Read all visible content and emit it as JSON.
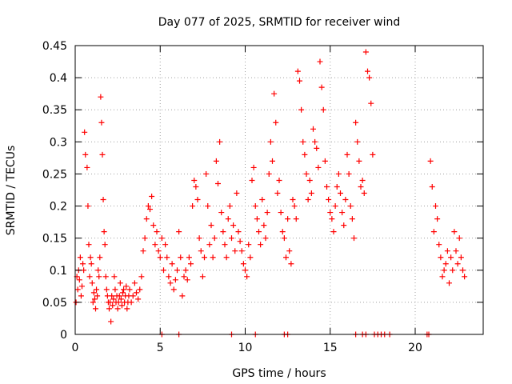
{
  "chart_data": {
    "type": "scatter",
    "title": "Day 077 of 2025, SRMTID for receiver wind",
    "xlabel": "GPS time / hours",
    "ylabel": "SRMTID / TECUs",
    "xlim": [
      0,
      24
    ],
    "ylim": [
      0,
      0.45
    ],
    "x_ticks": [
      "0",
      "5",
      "10",
      "15",
      "20"
    ],
    "y_ticks": [
      "0",
      "0.05",
      "0.1",
      "0.15",
      "0.2",
      "0.25",
      "0.3",
      "0.35",
      "0.4",
      "0.45"
    ],
    "grid": true,
    "marker": "+",
    "colors": {
      "points": "#ff0000",
      "grid": "#a0a0a0",
      "axis": "#000000"
    },
    "series": [
      {
        "name": "SRMTID",
        "x": [
          0.05,
          0.1,
          0.15,
          0.2,
          0.25,
          0.3,
          0.35,
          0.4,
          0.45,
          0.5,
          0.55,
          0.6,
          0.7,
          0.75,
          0.8,
          0.85,
          0.9,
          0.95,
          1.0,
          1.05,
          1.1,
          1.15,
          1.2,
          1.25,
          1.3,
          1.35,
          1.4,
          1.45,
          1.5,
          1.55,
          1.6,
          1.65,
          1.7,
          1.75,
          1.8,
          1.85,
          1.9,
          1.95,
          2.0,
          2.05,
          2.1,
          2.15,
          2.2,
          2.25,
          2.3,
          2.35,
          2.4,
          2.45,
          2.5,
          2.55,
          2.6,
          2.65,
          2.7,
          2.75,
          2.8,
          2.85,
          2.9,
          2.95,
          3.0,
          3.05,
          3.1,
          3.15,
          3.2,
          3.3,
          3.4,
          3.5,
          3.6,
          3.7,
          3.8,
          3.9,
          4.0,
          4.1,
          4.2,
          4.3,
          4.4,
          4.5,
          4.6,
          4.7,
          4.8,
          4.9,
          5.0,
          5.1,
          5.2,
          5.3,
          5.4,
          5.5,
          5.6,
          5.7,
          5.8,
          5.9,
          6.0,
          6.1,
          6.2,
          6.3,
          6.4,
          6.5,
          6.6,
          6.7,
          6.8,
          6.9,
          7.0,
          7.1,
          7.2,
          7.3,
          7.4,
          7.5,
          7.6,
          7.7,
          7.8,
          7.9,
          8.0,
          8.1,
          8.2,
          8.3,
          8.4,
          8.5,
          8.6,
          8.7,
          8.8,
          8.9,
          9.0,
          9.1,
          9.2,
          9.3,
          9.4,
          9.5,
          9.6,
          9.7,
          9.8,
          9.9,
          10.0,
          10.1,
          10.2,
          10.3,
          10.4,
          10.5,
          10.6,
          10.7,
          10.8,
          10.9,
          11.0,
          11.1,
          11.2,
          11.3,
          11.4,
          11.5,
          11.6,
          11.7,
          11.8,
          11.9,
          12.0,
          12.1,
          12.2,
          12.3,
          12.4,
          12.5,
          12.6,
          12.7,
          12.8,
          12.9,
          13.0,
          13.1,
          13.2,
          13.3,
          13.4,
          13.5,
          13.6,
          13.7,
          13.8,
          13.9,
          14.0,
          14.1,
          14.2,
          14.3,
          14.4,
          14.5,
          14.6,
          14.7,
          14.8,
          14.9,
          15.0,
          15.1,
          15.2,
          15.3,
          15.4,
          15.5,
          15.6,
          15.7,
          15.8,
          15.9,
          16.0,
          16.1,
          16.2,
          16.3,
          16.4,
          16.5,
          16.6,
          16.7,
          16.8,
          16.9,
          17.0,
          17.1,
          17.2,
          17.3,
          17.4,
          17.5,
          20.9,
          21.0,
          21.1,
          21.2,
          21.3,
          21.4,
          21.5,
          21.6,
          21.7,
          21.8,
          21.9,
          22.0,
          22.1,
          22.2,
          22.3,
          22.4,
          22.5,
          22.6,
          22.7,
          22.8,
          22.9,
          5.1,
          6.1,
          9.2,
          10.6,
          12.3,
          12.5,
          16.5,
          16.9,
          17.1,
          17.6,
          17.8,
          18.0,
          18.2,
          18.5,
          20.7,
          20.8
        ],
        "y": [
          0.05,
          0.09,
          0.07,
          0.1,
          0.085,
          0.12,
          0.06,
          0.075,
          0.11,
          0.1,
          0.315,
          0.28,
          0.26,
          0.2,
          0.14,
          0.09,
          0.12,
          0.11,
          0.08,
          0.05,
          0.065,
          0.055,
          0.04,
          0.07,
          0.06,
          0.1,
          0.09,
          0.12,
          0.37,
          0.33,
          0.28,
          0.21,
          0.16,
          0.14,
          0.09,
          0.07,
          0.06,
          0.05,
          0.04,
          0.05,
          0.02,
          0.06,
          0.045,
          0.055,
          0.09,
          0.07,
          0.05,
          0.06,
          0.04,
          0.05,
          0.06,
          0.08,
          0.055,
          0.045,
          0.065,
          0.07,
          0.05,
          0.06,
          0.075,
          0.04,
          0.05,
          0.06,
          0.07,
          0.05,
          0.06,
          0.08,
          0.065,
          0.055,
          0.07,
          0.09,
          0.13,
          0.15,
          0.18,
          0.2,
          0.195,
          0.215,
          0.17,
          0.14,
          0.16,
          0.13,
          0.12,
          0.15,
          0.1,
          0.14,
          0.12,
          0.09,
          0.08,
          0.11,
          0.07,
          0.085,
          0.1,
          0.16,
          0.12,
          0.06,
          0.09,
          0.1,
          0.085,
          0.12,
          0.11,
          0.2,
          0.24,
          0.23,
          0.21,
          0.15,
          0.13,
          0.09,
          0.12,
          0.25,
          0.2,
          0.14,
          0.17,
          0.12,
          0.15,
          0.27,
          0.235,
          0.3,
          0.19,
          0.16,
          0.14,
          0.12,
          0.18,
          0.2,
          0.15,
          0.17,
          0.13,
          0.22,
          0.16,
          0.145,
          0.13,
          0.11,
          0.1,
          0.09,
          0.14,
          0.12,
          0.24,
          0.26,
          0.2,
          0.18,
          0.16,
          0.14,
          0.21,
          0.17,
          0.15,
          0.19,
          0.25,
          0.3,
          0.27,
          0.375,
          0.33,
          0.22,
          0.24,
          0.19,
          0.16,
          0.15,
          0.12,
          0.18,
          0.13,
          0.11,
          0.21,
          0.2,
          0.18,
          0.41,
          0.395,
          0.35,
          0.3,
          0.28,
          0.25,
          0.21,
          0.24,
          0.22,
          0.32,
          0.3,
          0.29,
          0.26,
          0.425,
          0.385,
          0.35,
          0.27,
          0.23,
          0.21,
          0.19,
          0.18,
          0.16,
          0.2,
          0.23,
          0.25,
          0.22,
          0.19,
          0.17,
          0.21,
          0.28,
          0.25,
          0.2,
          0.18,
          0.15,
          0.33,
          0.3,
          0.27,
          0.23,
          0.24,
          0.22,
          0.44,
          0.41,
          0.4,
          0.36,
          0.28,
          0.27,
          0.23,
          0.16,
          0.2,
          0.18,
          0.14,
          0.12,
          0.09,
          0.1,
          0.11,
          0.13,
          0.08,
          0.12,
          0.1,
          0.16,
          0.13,
          0.11,
          0.15,
          0.12,
          0.1,
          0.09,
          0,
          0,
          0,
          0,
          0,
          0,
          0,
          0,
          0,
          0,
          0,
          0,
          0,
          0,
          0,
          0
        ]
      }
    ]
  }
}
